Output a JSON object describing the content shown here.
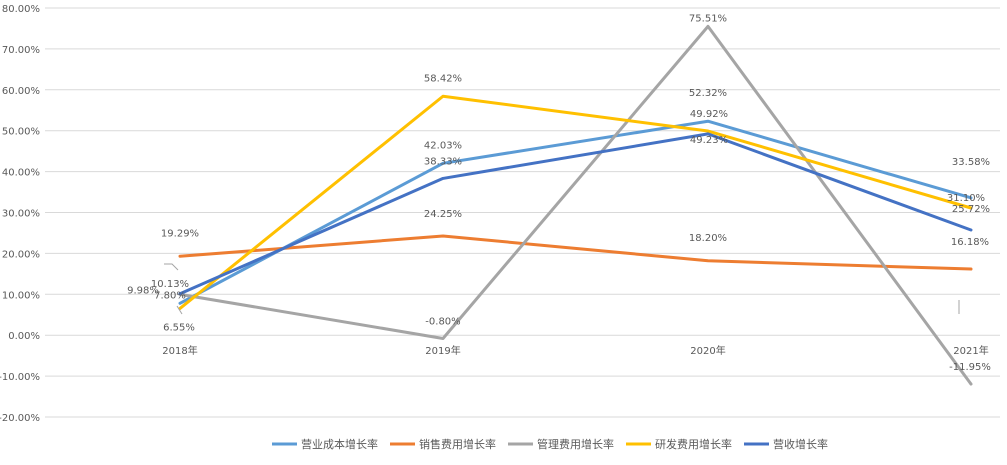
{
  "chart_data": {
    "type": "line",
    "categories": [
      "2018年",
      "2019年",
      "2020年",
      "2021年"
    ],
    "ylim": [
      -20,
      80
    ],
    "y_ticks": [
      -20,
      -10,
      0,
      10,
      20,
      30,
      40,
      50,
      60,
      70,
      80
    ],
    "y_tick_labels": [
      "-20.00%",
      "-10.00%",
      "0.00%",
      "10.00%",
      "20.00%",
      "30.00%",
      "40.00%",
      "50.00%",
      "60.00%",
      "70.00%",
      "80.00%"
    ],
    "grid": true,
    "legend_position": "bottom",
    "series": [
      {
        "name": "营业成本增长率",
        "color": "#5B9BD5",
        "values": [
          7.8,
          42.03,
          52.32,
          33.58
        ],
        "labels": [
          "7.80%",
          "42.03%",
          "52.32%",
          "33.58%"
        ]
      },
      {
        "name": "销售费用增长率",
        "color": "#ED7D31",
        "values": [
          19.29,
          24.25,
          18.2,
          16.18
        ],
        "labels": [
          "19.29%",
          "24.25%",
          "18.20%",
          "16.18%"
        ]
      },
      {
        "name": "管理费用增长率",
        "color": "#A5A5A5",
        "values": [
          9.98,
          -0.8,
          75.51,
          -11.95
        ],
        "labels": [
          "9.98%",
          "-0.80%",
          "75.51%",
          "-11.95%"
        ]
      },
      {
        "name": "研发费用增长率",
        "color": "#FFC000",
        "values": [
          6.55,
          58.42,
          49.92,
          31.1
        ],
        "labels": [
          "6.55%",
          "58.42%",
          "49.92%",
          "31.10%"
        ]
      },
      {
        "name": "营收增长率",
        "color": "#4472C4",
        "values": [
          10.13,
          38.33,
          49.23,
          25.72
        ],
        "labels": [
          "10.13%",
          "38.33%",
          "49.23%",
          "25.72%"
        ]
      }
    ]
  }
}
